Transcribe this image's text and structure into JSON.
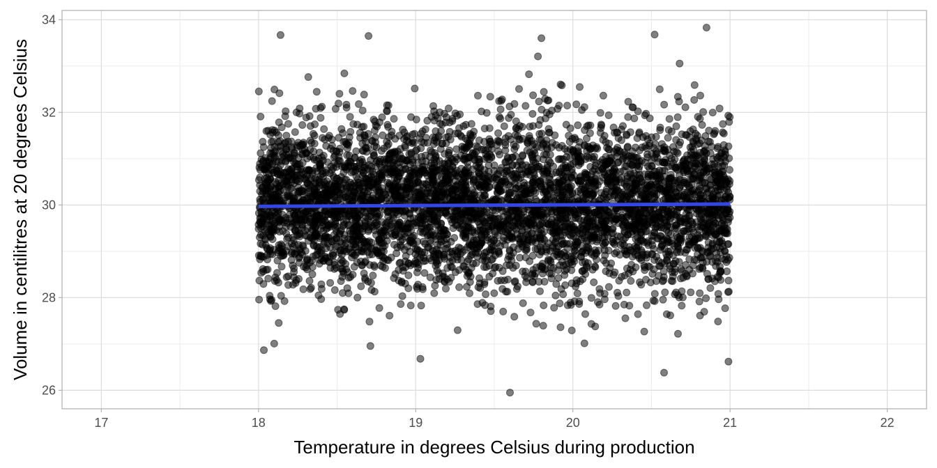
{
  "chart_data": {
    "type": "scatter",
    "title": "",
    "xlabel": "Temperature in degrees Celsius during production",
    "ylabel": "Volume in centilitres at 20 degrees Celsius",
    "xlim": [
      16.75,
      22.25
    ],
    "ylim": [
      25.6,
      34.2
    ],
    "x_ticks": [
      17,
      18,
      19,
      20,
      21,
      22
    ],
    "y_ticks": [
      26,
      28,
      30,
      32,
      34
    ],
    "x_tick_labels": [
      "17",
      "18",
      "19",
      "20",
      "21",
      "22"
    ],
    "y_tick_labels": [
      "26",
      "28",
      "30",
      "32",
      "34"
    ],
    "grid": true,
    "legend": "none",
    "points": {
      "color": "#000000",
      "opacity": 0.5,
      "x_range": [
        18.0,
        21.0
      ],
      "y_mean": 30.0,
      "y_sd": 0.9,
      "approx_count": 10000,
      "notable": [
        {
          "x": 19.6,
          "y": 25.95
        },
        {
          "x": 20.58,
          "y": 26.38
        },
        {
          "x": 20.99,
          "y": 26.62
        },
        {
          "x": 19.03,
          "y": 26.68
        },
        {
          "x": 20.85,
          "y": 33.83
        },
        {
          "x": 18.14,
          "y": 33.67
        },
        {
          "x": 20.52,
          "y": 33.68
        },
        {
          "x": 18.7,
          "y": 33.65
        },
        {
          "x": 19.8,
          "y": 33.6
        }
      ]
    },
    "trend_line": {
      "method": "linear",
      "color": "#3346e8",
      "x": [
        18.0,
        21.0
      ],
      "y": [
        29.97,
        30.02
      ]
    }
  }
}
